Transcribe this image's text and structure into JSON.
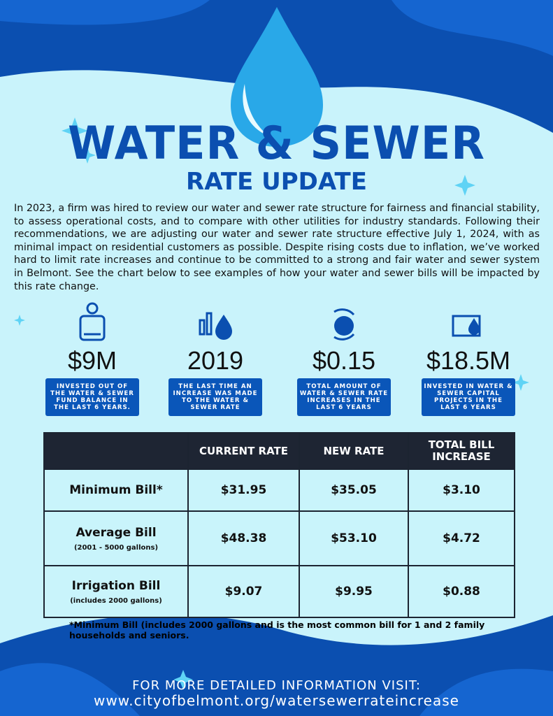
{
  "header": {
    "title": "WATER & SEWER",
    "subtitle": "RATE UPDATE"
  },
  "intro": "In 2023, a firm was hired to review our water and sewer rate structure for fairness and financial stability, to assess operational costs, and to compare with other utilities for industry standards. Following their recommendations, we are adjusting our water and sewer rate structure effective July 1, 2024, with as minimal impact on residential customers as possible. Despite rising costs due to inflation, we’ve worked hard to limit rate increases and continue to be committed to a strong and fair water and sewer system in Belmont. See the chart below to see examples of how your water and sewer bills will be impacted by this rate change.",
  "stats": [
    {
      "value": "$9M",
      "label": "INVESTED OUT OF THE WATER & SEWER FUND BALANCE IN THE LAST 6 YEARS."
    },
    {
      "value": "2019",
      "label": "THE LAST TIME AN INCREASE WAS MADE TO THE WATER & SEWER RATE"
    },
    {
      "value": "$0.15",
      "label": "TOTAL AMOUNT OF WATER & SEWER RATE INCREASES IN THE LAST 6 YEARS"
    },
    {
      "value": "$18.5M",
      "label": "INVESTED IN WATER & SEWER CAPITAL PROJECTS IN THE LAST 6 YEARS"
    }
  ],
  "table": {
    "headers": [
      "CURRENT RATE",
      "NEW RATE",
      "TOTAL BILL INCREASE"
    ],
    "rows": [
      {
        "label": "Minimum Bill*",
        "cells": [
          "$31.95",
          "$35.05",
          "$3.10"
        ]
      },
      {
        "label": "Average Bill",
        "note": "(2001 - 5000 gallons)",
        "cells": [
          "$48.38",
          "$53.10",
          "$4.72"
        ]
      },
      {
        "label": "Irrigation Bill",
        "note": "(includes 2000 gallons)",
        "cells": [
          "$9.07",
          "$9.95",
          "$0.88"
        ]
      }
    ]
  },
  "footnote": "*Minimum Bill (includes 2000 gallons and is the most common bill for 1 and 2 family households and seniors.",
  "footer": {
    "line1": "FOR MORE DETAILED INFORMATION VISIT:",
    "line2": "www.cityofbelmont.org/watersewerrateincrease"
  }
}
